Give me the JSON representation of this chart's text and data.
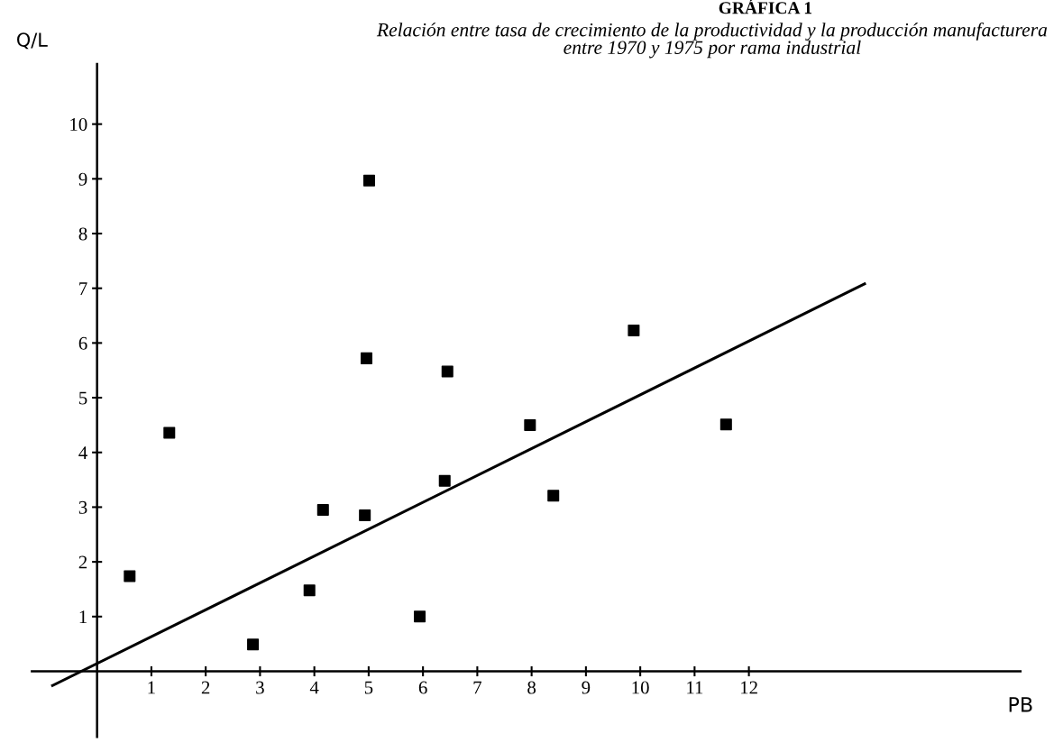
{
  "chart_data": {
    "type": "scatter",
    "title": "GRÁFICA 1",
    "subtitle": "Relación entre tasa de crecimiento de la productividad y la producción manufacturera\nentre 1970 y 1975 por rama industrial",
    "xlabel": "PB",
    "ylabel": "Q/L",
    "series": [
      {
        "color": "#000000",
        "marker": "square",
        "x": [
          0.6,
          1.33,
          2.87,
          3.91,
          4.16,
          4.93,
          5.94,
          6.4,
          7.97,
          5.01,
          4.96,
          6.45,
          9.88,
          8.4,
          11.58
        ],
        "values": [
          1.74,
          4.36,
          0.49,
          1.48,
          2.95,
          2.85,
          1.0,
          3.48,
          4.5,
          8.97,
          5.72,
          5.48,
          6.23,
          3.21,
          4.51
        ]
      },
      {
        "type": "line",
        "color": "#000000",
        "line_style": "solid",
        "x": [
          -0.82,
          14.13
        ],
        "values": [
          -0.26,
          7.08
        ]
      }
    ],
    "xlim": [
      -1.2,
      17
    ],
    "ylim": [
      -1.2,
      11.1
    ],
    "xticks": [
      1,
      2,
      3,
      4,
      5,
      6,
      7,
      8,
      9,
      10,
      11,
      12
    ],
    "yticks": [
      1,
      2,
      3,
      4,
      5,
      6,
      7,
      8,
      9,
      10
    ],
    "grid": false,
    "legend": false
  }
}
